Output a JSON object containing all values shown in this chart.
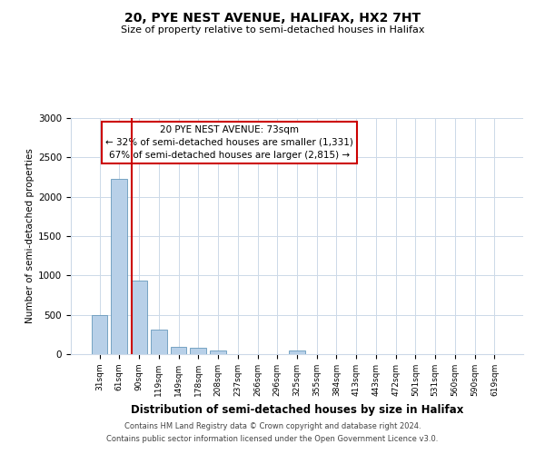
{
  "title": "20, PYE NEST AVENUE, HALIFAX, HX2 7HT",
  "subtitle": "Size of property relative to semi-detached houses in Halifax",
  "xlabel": "Distribution of semi-detached houses by size in Halifax",
  "ylabel": "Number of semi-detached properties",
  "bar_labels": [
    "31sqm",
    "61sqm",
    "90sqm",
    "119sqm",
    "149sqm",
    "178sqm",
    "208sqm",
    "237sqm",
    "266sqm",
    "296sqm",
    "325sqm",
    "355sqm",
    "384sqm",
    "413sqm",
    "443sqm",
    "472sqm",
    "501sqm",
    "531sqm",
    "560sqm",
    "590sqm",
    "619sqm"
  ],
  "bar_values": [
    500,
    2230,
    940,
    310,
    95,
    85,
    45,
    0,
    0,
    0,
    45,
    0,
    0,
    0,
    0,
    0,
    0,
    0,
    0,
    0,
    0
  ],
  "bar_color": "#b8d0e8",
  "bar_edgecolor": "#6699bb",
  "ylim": [
    0,
    3000
  ],
  "yticks": [
    0,
    500,
    1000,
    1500,
    2000,
    2500,
    3000
  ],
  "property_line_x": 1.65,
  "annotation_title": "20 PYE NEST AVENUE: 73sqm",
  "annotation_line1": "← 32% of semi-detached houses are smaller (1,331)",
  "annotation_line2": "67% of semi-detached houses are larger (2,815) →",
  "annotation_box_color": "#ffffff",
  "annotation_box_edgecolor": "#cc0000",
  "red_line_color": "#cc0000",
  "footer_line1": "Contains HM Land Registry data © Crown copyright and database right 2024.",
  "footer_line2": "Contains public sector information licensed under the Open Government Licence v3.0.",
  "bg_color": "#ffffff",
  "grid_color": "#ccd9e8"
}
